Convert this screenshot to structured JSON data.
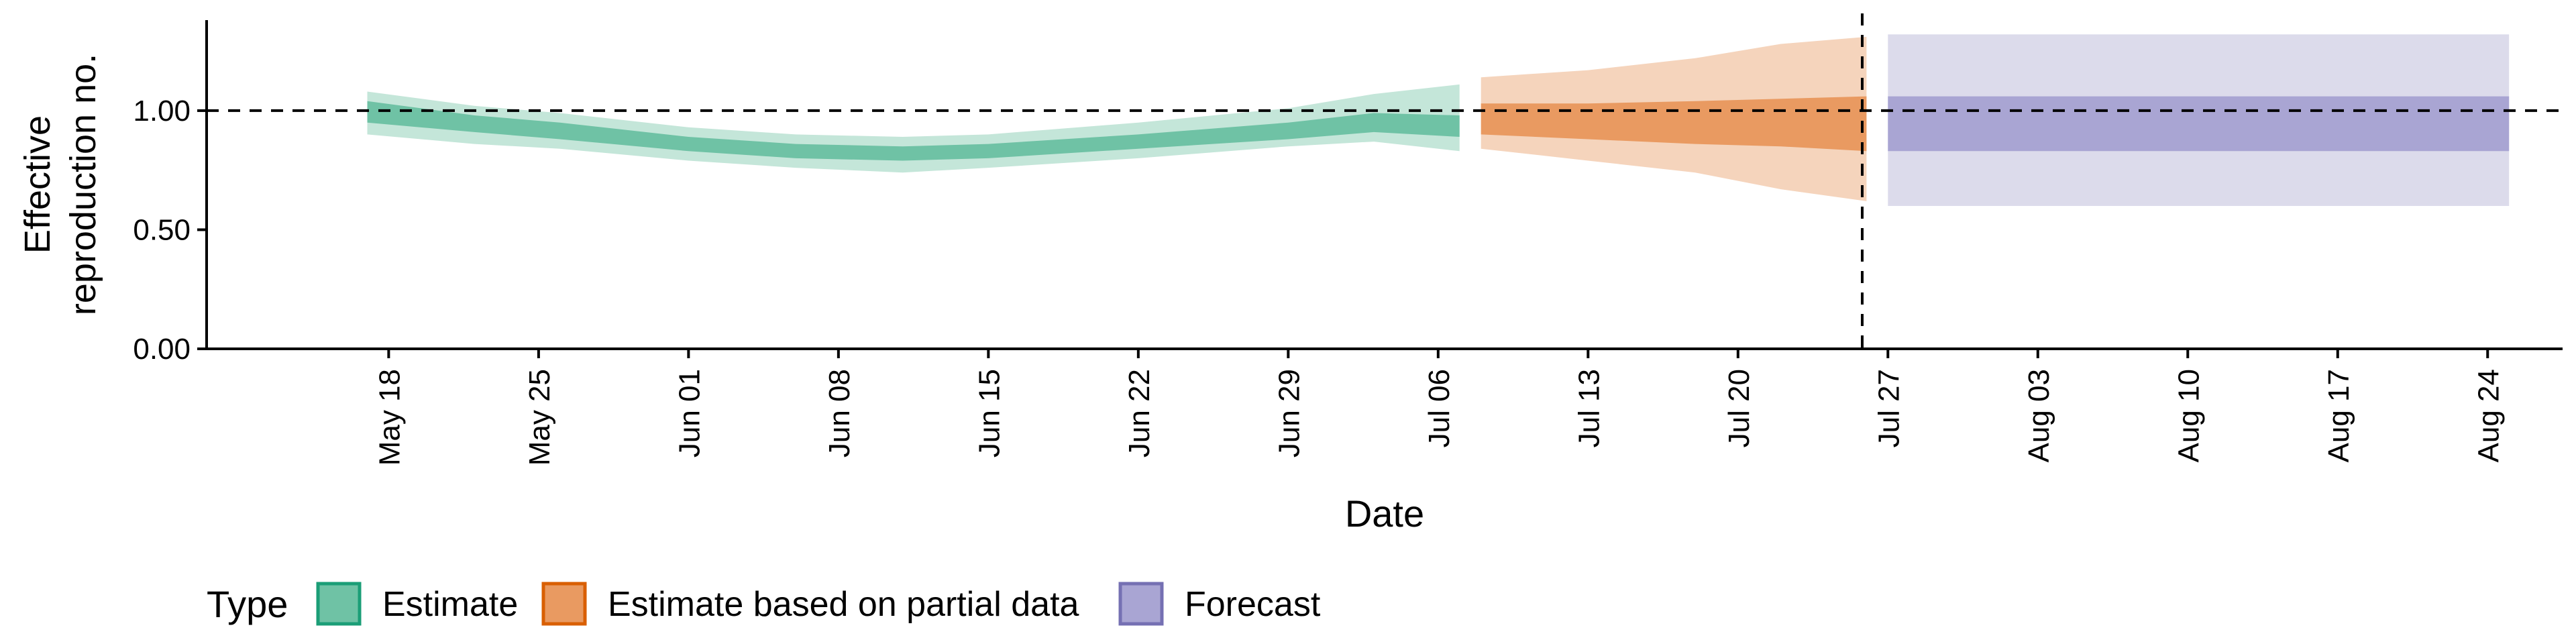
{
  "chart_data": {
    "type": "area",
    "ylabel_lines": [
      "Effective",
      "reproduction no."
    ],
    "xlabel": "Date",
    "ylim": [
      0,
      1.38
    ],
    "y_ticks": [
      {
        "value": 0.0,
        "label": "0.00"
      },
      {
        "value": 0.5,
        "label": "0.50"
      },
      {
        "value": 1.0,
        "label": "1.00"
      }
    ],
    "x_domain_days": [
      -8.5,
      101.5
    ],
    "x_ticks": [
      {
        "day": 0,
        "label": "May 18"
      },
      {
        "day": 7,
        "label": "May 25"
      },
      {
        "day": 14,
        "label": "Jun 01"
      },
      {
        "day": 21,
        "label": "Jun 08"
      },
      {
        "day": 28,
        "label": "Jun 15"
      },
      {
        "day": 35,
        "label": "Jun 22"
      },
      {
        "day": 42,
        "label": "Jun 29"
      },
      {
        "day": 49,
        "label": "Jul 06"
      },
      {
        "day": 56,
        "label": "Jul 13"
      },
      {
        "day": 63,
        "label": "Jul 20"
      },
      {
        "day": 70,
        "label": "Jul 27"
      },
      {
        "day": 77,
        "label": "Aug 03"
      },
      {
        "day": 84,
        "label": "Aug 10"
      },
      {
        "day": 91,
        "label": "Aug 17"
      },
      {
        "day": 98,
        "label": "Aug 24"
      }
    ],
    "reference_line_y": 1.0,
    "vertical_line_day": 68.8,
    "legend": {
      "title": "Type",
      "position": "bottom",
      "entries": [
        "Estimate",
        "Estimate based on partial data",
        "Forecast"
      ]
    },
    "series": [
      {
        "name": "Estimate",
        "color_outer": "#c4e6d9",
        "color_inner": "#6fc2a5",
        "key_fill": "#6fc2a5",
        "key_stroke": "#1b9e77",
        "points": [
          {
            "day": -1,
            "lo90": 0.9,
            "lo50": 0.95,
            "hi50": 1.04,
            "hi90": 1.08
          },
          {
            "day": 4,
            "lo90": 0.86,
            "lo50": 0.91,
            "hi50": 0.98,
            "hi90": 1.02
          },
          {
            "day": 8,
            "lo90": 0.84,
            "lo50": 0.88,
            "hi50": 0.95,
            "hi90": 0.99
          },
          {
            "day": 14,
            "lo90": 0.79,
            "lo50": 0.83,
            "hi50": 0.89,
            "hi90": 0.93
          },
          {
            "day": 19,
            "lo90": 0.76,
            "lo50": 0.8,
            "hi50": 0.86,
            "hi90": 0.9
          },
          {
            "day": 24,
            "lo90": 0.74,
            "lo50": 0.79,
            "hi50": 0.85,
            "hi90": 0.89
          },
          {
            "day": 28,
            "lo90": 0.76,
            "lo50": 0.8,
            "hi50": 0.86,
            "hi90": 0.9
          },
          {
            "day": 35,
            "lo90": 0.8,
            "lo50": 0.84,
            "hi50": 0.9,
            "hi90": 0.95
          },
          {
            "day": 42,
            "lo90": 0.85,
            "lo50": 0.88,
            "hi50": 0.95,
            "hi90": 1.01
          },
          {
            "day": 46,
            "lo90": 0.87,
            "lo50": 0.91,
            "hi50": 0.99,
            "hi90": 1.07
          },
          {
            "day": 50,
            "lo90": 0.83,
            "lo50": 0.89,
            "hi50": 0.98,
            "hi90": 1.11
          }
        ]
      },
      {
        "name": "Estimate based on partial data",
        "color_outer": "#f5d4bc",
        "color_inner": "#e99a61",
        "key_fill": "#e99a61",
        "key_stroke": "#d95f02",
        "points": [
          {
            "day": 51,
            "lo90": 0.84,
            "lo50": 0.9,
            "hi50": 1.03,
            "hi90": 1.14
          },
          {
            "day": 56,
            "lo90": 0.79,
            "lo50": 0.88,
            "hi50": 1.03,
            "hi90": 1.17
          },
          {
            "day": 61,
            "lo90": 0.74,
            "lo50": 0.86,
            "hi50": 1.04,
            "hi90": 1.22
          },
          {
            "day": 65,
            "lo90": 0.67,
            "lo50": 0.85,
            "hi50": 1.05,
            "hi90": 1.28
          },
          {
            "day": 69,
            "lo90": 0.62,
            "lo50": 0.83,
            "hi50": 1.06,
            "hi90": 1.31
          }
        ]
      },
      {
        "name": "Forecast",
        "color_outer": "#dcdbeb",
        "color_inner": "#a9a5d3",
        "key_fill": "#a9a5d3",
        "key_stroke": "#7570b3",
        "points": [
          {
            "day": 70,
            "lo90": 0.6,
            "lo50": 0.83,
            "hi50": 1.06,
            "hi90": 1.32
          },
          {
            "day": 99,
            "lo90": 0.6,
            "lo50": 0.83,
            "hi50": 1.06,
            "hi90": 1.32
          }
        ]
      }
    ]
  }
}
